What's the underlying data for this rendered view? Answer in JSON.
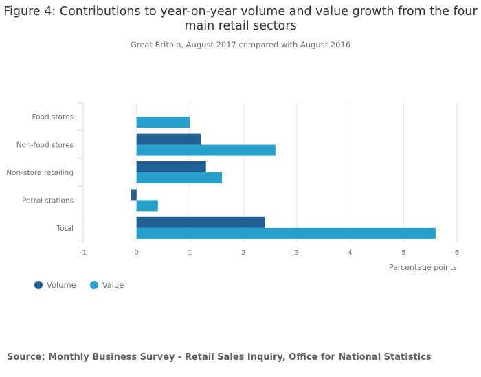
{
  "chart_data": {
    "type": "bar",
    "orientation": "horizontal",
    "title": "Figure 4: Contributions to year-on-year volume and value growth from the four main retail sectors",
    "subtitle": "Great Britain, August 2017 compared with August 2016",
    "categories": [
      "Food stores",
      "Non-food stores",
      "Non-store retailing",
      "Petrol stations",
      "Total"
    ],
    "series": [
      {
        "name": "Volume",
        "color": "#206095",
        "values": [
          0.0,
          1.2,
          1.3,
          -0.1,
          2.4
        ]
      },
      {
        "name": "Value",
        "color": "#27a0cc",
        "values": [
          1.0,
          2.6,
          1.6,
          0.4,
          5.6
        ]
      }
    ],
    "xlabel": "Percentage points",
    "ylabel": "",
    "xlim": [
      -1,
      6
    ],
    "xticks": [
      "-1",
      "0",
      "1",
      "2",
      "3",
      "4",
      "5",
      "6"
    ],
    "grid": true,
    "legend": "bottom-left"
  },
  "source": "Source: Monthly Business Survey - Retail Sales Inquiry, Office for National Statistics"
}
